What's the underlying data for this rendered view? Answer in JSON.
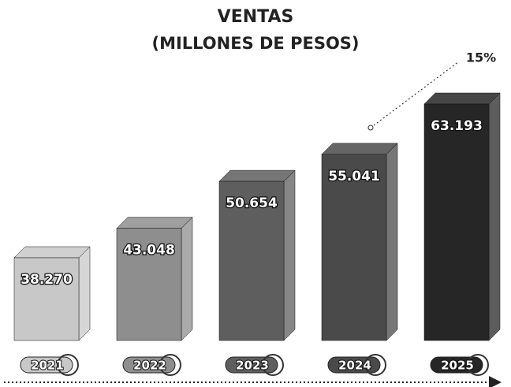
{
  "chart_data": {
    "type": "bar",
    "title": "VENTAS",
    "subtitle": "(MILLONES DE PESOS)",
    "categories": [
      "2021",
      "2022",
      "2023",
      "2024",
      "2025"
    ],
    "values": [
      38270,
      43048,
      50654,
      55041,
      63193
    ],
    "value_labels": [
      "38.270",
      "43.048",
      "50.654",
      "55.041",
      "63.193"
    ],
    "colors": [
      "#c8c8c8",
      "#8e8e8e",
      "#5e5e5e",
      "#4a4a4a",
      "#262626"
    ],
    "annotation": "15%"
  }
}
